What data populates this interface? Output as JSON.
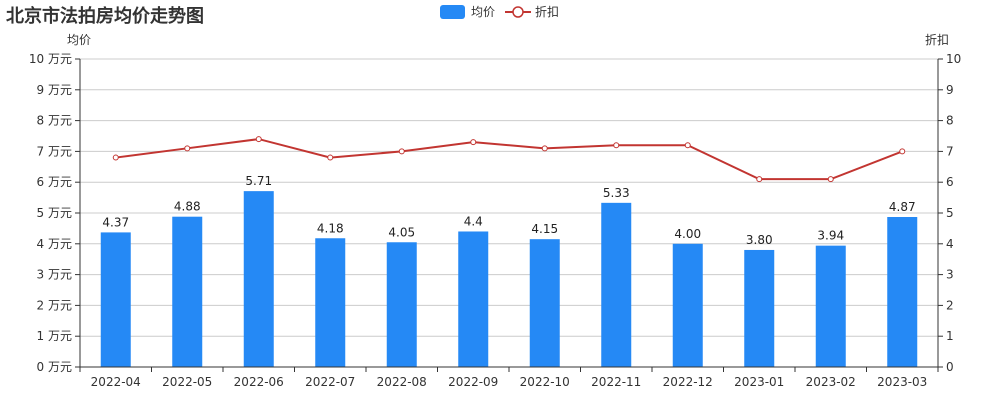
{
  "title": "北京市法拍房均价走势图",
  "legend": {
    "items": [
      {
        "label": "均价",
        "type": "bar",
        "color": "#2589f5"
      },
      {
        "label": "折扣",
        "type": "line",
        "color": "#c23531"
      }
    ]
  },
  "axes": {
    "left_name": "均价",
    "right_name": "折扣",
    "left_ticks": [
      "0 万元",
      "1 万元",
      "2 万元",
      "3 万元",
      "4 万元",
      "5 万元",
      "6 万元",
      "7 万元",
      "8 万元",
      "9 万元",
      "10 万元"
    ],
    "right_ticks": [
      "0",
      "1",
      "2",
      "3",
      "4",
      "5",
      "6",
      "7",
      "8",
      "9",
      "10"
    ]
  },
  "chart_data": {
    "type": "bar",
    "title": "北京市法拍房均价走势图",
    "categories": [
      "2022-04",
      "2022-05",
      "2022-06",
      "2022-07",
      "2022-08",
      "2022-09",
      "2022-10",
      "2022-11",
      "2022-12",
      "2023-01",
      "2023-02",
      "2023-03"
    ],
    "series": [
      {
        "name": "均价",
        "type": "bar",
        "axis": "left",
        "unit": "万元",
        "color": "#2589f5",
        "values": [
          4.37,
          4.88,
          5.71,
          4.18,
          4.05,
          4.4,
          4.15,
          5.33,
          4.0,
          3.8,
          3.94,
          4.87
        ],
        "labels": [
          "4.37",
          "4.88",
          "5.71",
          "4.18",
          "4.05",
          "4.4",
          "4.15",
          "5.33",
          "4.00",
          "3.80",
          "3.94",
          "4.87"
        ]
      },
      {
        "name": "折扣",
        "type": "line",
        "axis": "right",
        "color": "#c23531",
        "values": [
          6.8,
          7.1,
          7.4,
          6.8,
          7.0,
          7.3,
          7.1,
          7.2,
          7.2,
          6.1,
          6.1,
          7.0
        ]
      }
    ],
    "xlabel": "",
    "ylabel": "均价",
    "ylabel_right": "折扣",
    "ylim": [
      0,
      10
    ],
    "ylim_right": [
      0,
      10
    ],
    "grid": true,
    "legend_position": "top-center"
  }
}
